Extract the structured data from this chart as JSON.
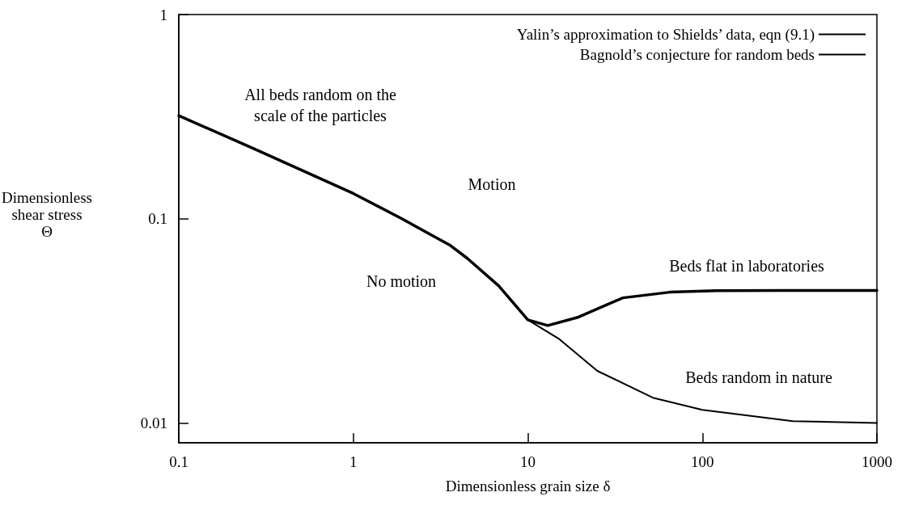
{
  "chart_data": {
    "type": "line",
    "xlabel": "Dimensionless grain size δ",
    "ylabel": "Dimensionless\nshear stress\nΘ",
    "log": "xy",
    "xlim": [
      0.1,
      1000
    ],
    "xticks": [
      0.1,
      1,
      10,
      100,
      1000
    ],
    "ylim": [
      0.008,
      1
    ],
    "yticks": [
      0.01,
      0.1,
      1
    ],
    "grid": false,
    "legend": "top right",
    "marker": "none",
    "line_style": "solid",
    "series": [
      {
        "name": "Yalin’s approximation to Shields’ data, eqn (9.1)",
        "color": "#000000",
        "x": [
          0.1,
          0.27,
          1,
          1.9,
          3.6,
          4.5,
          6.8,
          10,
          13,
          19.5,
          35,
          65,
          120,
          300,
          1000
        ],
        "values": [
          0.32,
          0.22,
          0.133,
          0.1,
          0.074,
          0.064,
          0.047,
          0.032,
          0.03,
          0.033,
          0.041,
          0.0437,
          0.0445,
          0.0446,
          0.0446
        ]
      },
      {
        "name": "Bagnold’s conjecture for random beds",
        "color": "#000000",
        "x": [
          0.1,
          0.27,
          1,
          1.9,
          3.6,
          4.5,
          6.8,
          10,
          15,
          25,
          52,
          100,
          330,
          1000
        ],
        "values": [
          0.32,
          0.22,
          0.133,
          0.1,
          0.074,
          0.064,
          0.047,
          0.032,
          0.0259,
          0.018,
          0.0133,
          0.0116,
          0.0102,
          0.01
        ]
      }
    ],
    "annotations": [
      "All beds random on the\nscale of the particles",
      "Motion",
      "No motion",
      "Beds flat in laboratories",
      "Beds random in nature"
    ]
  }
}
